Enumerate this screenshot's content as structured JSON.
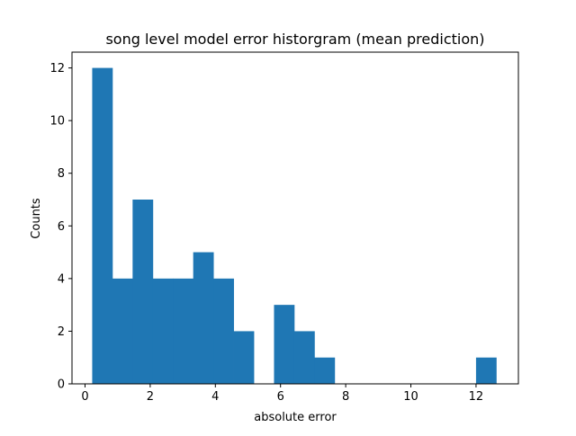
{
  "chart_data": {
    "type": "bar",
    "title": "song level model error historgram (mean prediction)",
    "xlabel": "absolute error",
    "ylabel": "Counts",
    "xlim": [
      -0.4,
      13.3
    ],
    "ylim": [
      0,
      12.6
    ],
    "xticks": [
      0,
      2,
      4,
      6,
      8,
      10,
      12
    ],
    "yticks": [
      0,
      2,
      4,
      6,
      8,
      10,
      12
    ],
    "bins": {
      "edges": [
        0.22,
        0.84,
        1.46,
        2.08,
        2.7,
        3.32,
        3.94,
        4.56,
        5.18,
        5.8,
        6.42,
        7.04,
        7.66,
        8.28,
        8.9,
        9.52,
        10.14,
        10.76,
        11.38,
        12.0,
        12.62
      ],
      "counts": [
        12,
        4,
        7,
        4,
        4,
        5,
        4,
        2,
        0,
        3,
        2,
        1,
        0,
        0,
        0,
        0,
        0,
        0,
        0,
        1
      ]
    },
    "bar_color": "#1f77b4",
    "grid": false,
    "legend": "none"
  }
}
